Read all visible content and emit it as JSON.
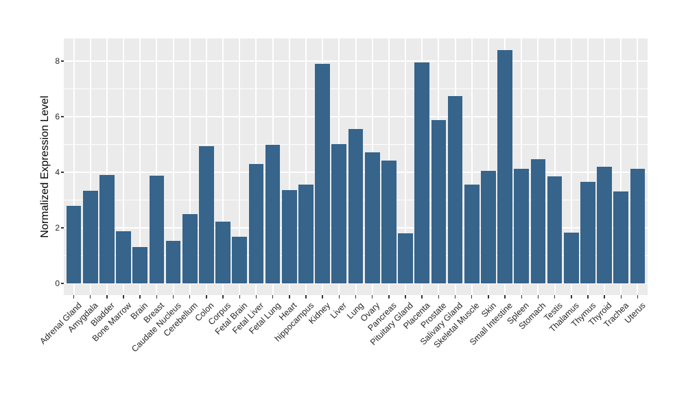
{
  "chart_data": {
    "type": "bar",
    "title": "",
    "ylabel": "Normalized Expression Level",
    "xlabel": "",
    "categories": [
      "Adrenal Gland",
      "Amygdala",
      "Bladder",
      "Bone Marrow",
      "Brain",
      "Breast",
      "Caudate Nucleus",
      "Cerebellum",
      "Colon",
      "Corpus",
      "Fetal Brain",
      "Fetal Liver",
      "Fetal Lung",
      "Heart",
      "hippocampus",
      "Kidney",
      "Liver",
      "Lung",
      "Ovary",
      "Pancreas",
      "Pituitary Gland",
      "Placenta",
      "Prostate",
      "Salivary Gland",
      "Skeletal Muscle",
      "Skin",
      "Small Intestine",
      "Spleen",
      "Stomach",
      "Testis",
      "Thalamus",
      "Thymus",
      "Thyroid",
      "Trachea",
      "Uterus"
    ],
    "values": [
      2.78,
      3.33,
      3.9,
      1.88,
      1.3,
      3.87,
      1.54,
      2.49,
      4.95,
      2.22,
      1.68,
      4.31,
      4.98,
      3.37,
      3.55,
      7.9,
      5.02,
      5.57,
      4.72,
      4.42,
      1.81,
      7.95,
      5.87,
      6.75,
      3.56,
      4.05,
      8.4,
      4.13,
      4.48,
      3.86,
      1.83,
      3.65,
      4.21,
      3.31,
      4.13
    ],
    "y_ticks": [
      0,
      2,
      4,
      6,
      8
    ],
    "y_minor_ticks": [
      1,
      3,
      5,
      7
    ],
    "ylim": [
      -0.42,
      8.82
    ],
    "x_label_angle_deg": 45,
    "grid": "major-and-minor",
    "legend_position": "none",
    "colors": {
      "bar": "#36648B",
      "panel_background": "#EBEBEB",
      "gridline": "#FFFFFF",
      "axis_text": "#262626",
      "axis_title": "#000000",
      "tick_mark": "#333333",
      "figure_background": "#FFFFFF"
    }
  }
}
